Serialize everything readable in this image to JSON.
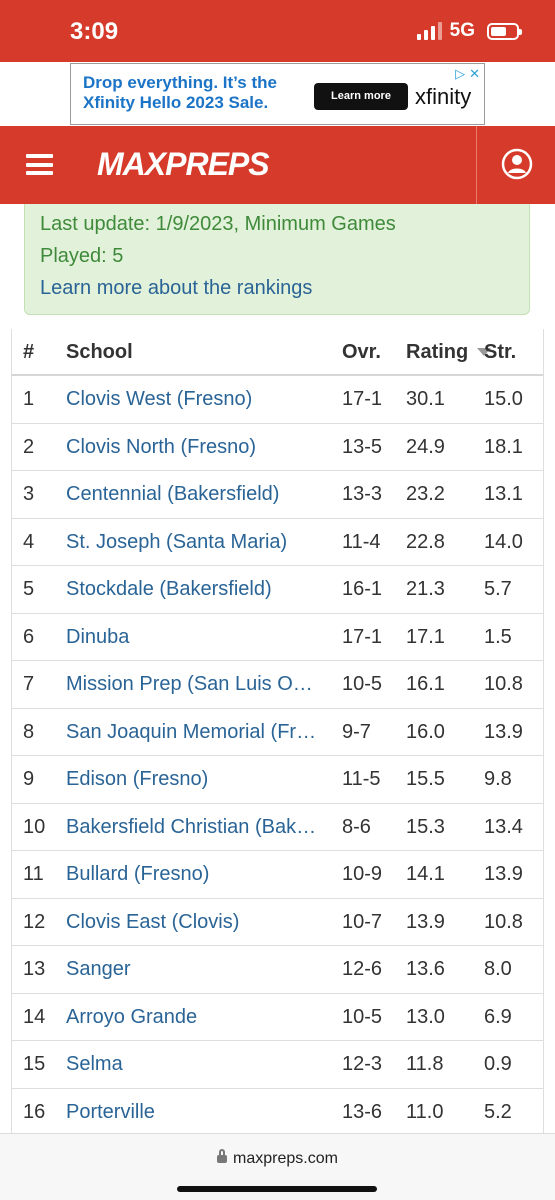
{
  "status_bar": {
    "time": "3:09",
    "network": "5G"
  },
  "ad": {
    "headline": "Drop everything. It’s the Xfinity Hello 2023 Sale.",
    "button": "Learn more",
    "brand": "xfinity"
  },
  "header": {
    "logo": "MAXPREPS",
    "brand_color": "#d63a2a"
  },
  "info": {
    "line1": "Last update: 1/9/2023, Minimum Games",
    "line2": "Played: 5",
    "link": "Learn more about the rankings"
  },
  "table": {
    "columns": {
      "rank": "#",
      "school": "School",
      "ovr": "Ovr.",
      "rating": "Rating",
      "str": "Str."
    },
    "rows": [
      {
        "rank": "1",
        "school": "Clovis West (Fresno)",
        "ovr": "17-1",
        "rating": "30.1",
        "str": "15.0"
      },
      {
        "rank": "2",
        "school": "Clovis North (Fresno)",
        "ovr": "13-5",
        "rating": "24.9",
        "str": "18.1"
      },
      {
        "rank": "3",
        "school": "Centennial (Bakersfield)",
        "ovr": "13-3",
        "rating": "23.2",
        "str": "13.1"
      },
      {
        "rank": "4",
        "school": "St. Joseph (Santa Maria)",
        "ovr": "11-4",
        "rating": "22.8",
        "str": "14.0"
      },
      {
        "rank": "5",
        "school": "Stockdale (Bakersfield)",
        "ovr": "16-1",
        "rating": "21.3",
        "str": "5.7"
      },
      {
        "rank": "6",
        "school": "Dinuba",
        "ovr": "17-1",
        "rating": "17.1",
        "str": "1.5"
      },
      {
        "rank": "7",
        "school": "Mission Prep (San Luis O…",
        "ovr": "10-5",
        "rating": "16.1",
        "str": "10.8"
      },
      {
        "rank": "8",
        "school": "San Joaquin Memorial (Fr…",
        "ovr": "9-7",
        "rating": "16.0",
        "str": "13.9"
      },
      {
        "rank": "9",
        "school": "Edison (Fresno)",
        "ovr": "11-5",
        "rating": "15.5",
        "str": "9.8"
      },
      {
        "rank": "10",
        "school": "Bakersfield Christian (Bak…",
        "ovr": "8-6",
        "rating": "15.3",
        "str": "13.4"
      },
      {
        "rank": "11",
        "school": "Bullard (Fresno)",
        "ovr": "10-9",
        "rating": "14.1",
        "str": "13.9"
      },
      {
        "rank": "12",
        "school": "Clovis East (Clovis)",
        "ovr": "10-7",
        "rating": "13.9",
        "str": "10.8"
      },
      {
        "rank": "13",
        "school": "Sanger",
        "ovr": "12-6",
        "rating": "13.6",
        "str": "8.0"
      },
      {
        "rank": "14",
        "school": "Arroyo Grande",
        "ovr": "10-5",
        "rating": "13.0",
        "str": "6.9"
      },
      {
        "rank": "15",
        "school": "Selma",
        "ovr": "12-3",
        "rating": "11.8",
        "str": "0.9"
      },
      {
        "rank": "16",
        "school": "Porterville",
        "ovr": "13-6",
        "rating": "11.0",
        "str": "5.2"
      }
    ]
  },
  "browser": {
    "url": "maxpreps.com"
  }
}
